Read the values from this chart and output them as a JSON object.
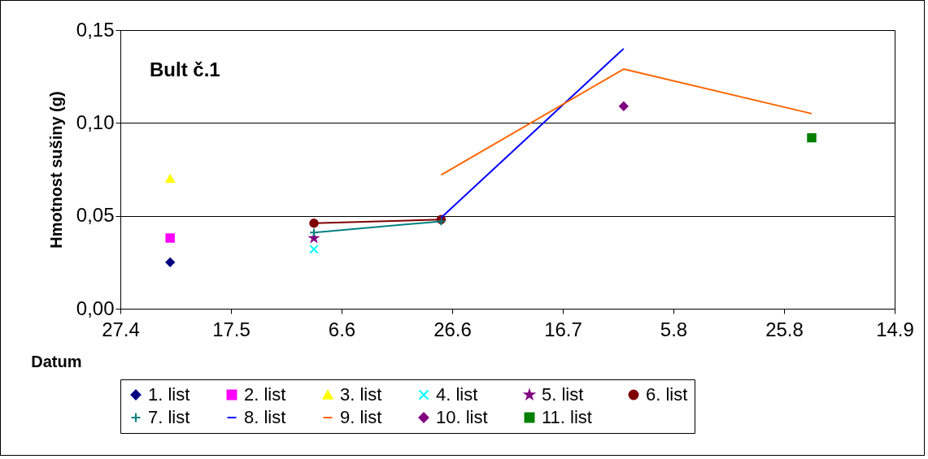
{
  "chart_data": {
    "type": "line",
    "annotations": [
      "Bult č.1"
    ],
    "xlabel": "Datum",
    "ylabel": "Hmotnost sušiny (g)",
    "xlim": [
      "--04-27",
      "--09-14"
    ],
    "xticks": [
      {
        "value": "--04-27",
        "label": "27.4"
      },
      {
        "value": "--05-17",
        "label": "17.5"
      },
      {
        "value": "--06-06",
        "label": "6.6"
      },
      {
        "value": "--06-26",
        "label": "26.6"
      },
      {
        "value": "--07-16",
        "label": "16.7"
      },
      {
        "value": "--08-05",
        "label": "5.8"
      },
      {
        "value": "--08-25",
        "label": "25.8"
      },
      {
        "value": "--09-14",
        "label": "14.9"
      }
    ],
    "ylim": [
      0,
      0.15
    ],
    "yticks": [
      {
        "value": 0,
        "label": "0,00"
      },
      {
        "value": 0.05,
        "label": "0,05"
      },
      {
        "value": 0.1,
        "label": "0,10"
      },
      {
        "value": 0.15,
        "label": "0,15"
      }
    ],
    "grid": "y",
    "legend": "bottom",
    "series": [
      {
        "name": "1. list",
        "color": "#000080",
        "marker": "diamond",
        "x": [
          "--05-06"
        ],
        "values": [
          0.025
        ]
      },
      {
        "name": "2. list",
        "color": "#ff00ff",
        "marker": "square",
        "x": [
          "--05-06"
        ],
        "values": [
          0.038
        ]
      },
      {
        "name": "3. list",
        "color": "#ffff00",
        "marker": "triangle",
        "x": [
          "--05-06"
        ],
        "values": [
          0.07
        ]
      },
      {
        "name": "4. list",
        "color": "#00ffff",
        "marker": "cross",
        "x": [
          "--06-01"
        ],
        "values": [
          0.032
        ]
      },
      {
        "name": "5. list",
        "color": "#800080",
        "marker": "star",
        "x": [
          "--06-01"
        ],
        "values": [
          0.038
        ]
      },
      {
        "name": "6. list",
        "color": "#800000",
        "marker": "circle",
        "x": [
          "--06-01",
          "--06-24"
        ],
        "values": [
          0.046,
          0.048
        ]
      },
      {
        "name": "7. list",
        "color": "#008080",
        "marker": "plus",
        "x": [
          "--06-01",
          "--06-24"
        ],
        "values": [
          0.041,
          0.047
        ]
      },
      {
        "name": "8. list",
        "color": "#0000ff",
        "marker": "none",
        "x": [
          "--06-24",
          "--07-27"
        ],
        "values": [
          0.049,
          0.14
        ]
      },
      {
        "name": "9. list",
        "color": "#ff6600",
        "marker": "none",
        "x": [
          "--06-24",
          "--07-27",
          "--08-30"
        ],
        "values": [
          0.072,
          0.129,
          0.105
        ]
      },
      {
        "name": "10. list",
        "color": "#800080",
        "marker": "diamond",
        "x": [
          "--07-27"
        ],
        "values": [
          0.109
        ]
      },
      {
        "name": "11. list",
        "color": "#008000",
        "marker": "square",
        "x": [
          "--08-30"
        ],
        "values": [
          0.092
        ]
      }
    ]
  }
}
